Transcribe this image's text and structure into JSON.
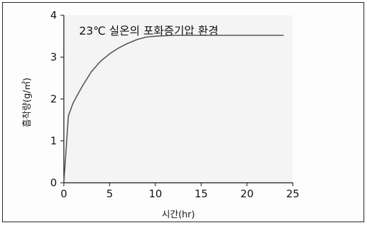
{
  "chart_data": {
    "type": "line",
    "title": "",
    "annotation": "23℃ 실온의 포화증기압 환경",
    "xlabel": "시간(hr)",
    "ylabel": "흡착량(g/㎡)",
    "xlim": [
      0,
      25
    ],
    "ylim": [
      0,
      4
    ],
    "xticks": [
      0,
      5,
      10,
      15,
      20,
      25
    ],
    "yticks": [
      0,
      1,
      2,
      3,
      4
    ],
    "grid": false,
    "legend": "none",
    "series": [
      {
        "color": "#555555",
        "x": [
          0,
          0.5,
          1,
          1.5,
          2,
          3,
          4,
          5,
          6,
          7,
          8,
          9,
          10,
          12,
          14,
          16,
          18,
          20,
          22,
          24
        ],
        "y": [
          0,
          1.6,
          1.9,
          2.1,
          2.3,
          2.65,
          2.9,
          3.08,
          3.22,
          3.33,
          3.42,
          3.48,
          3.5,
          3.52,
          3.52,
          3.52,
          3.52,
          3.52,
          3.52,
          3.52
        ]
      }
    ]
  }
}
